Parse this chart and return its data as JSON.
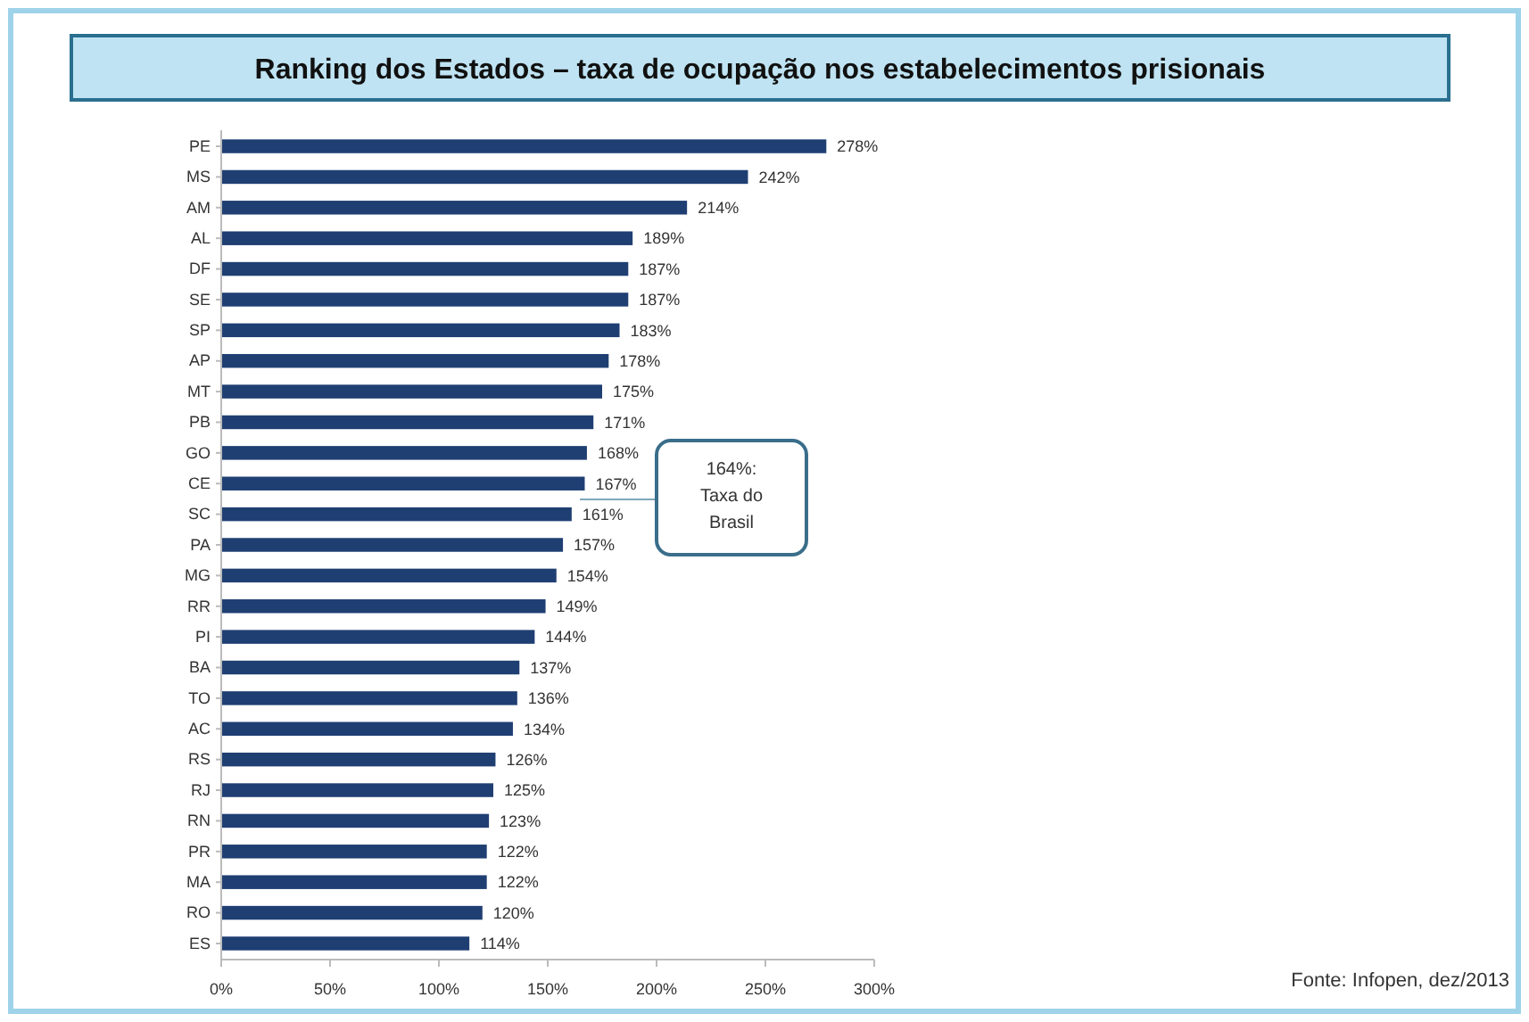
{
  "chart_data": {
    "type": "bar",
    "orientation": "horizontal",
    "title": "Ranking dos Estados – taxa de ocupação nos estabelecimentos prisionais",
    "categories": [
      "PE",
      "MS",
      "AM",
      "AL",
      "DF",
      "SE",
      "SP",
      "AP",
      "MT",
      "PB",
      "GO",
      "CE",
      "SC",
      "PA",
      "MG",
      "RR",
      "PI",
      "BA",
      "TO",
      "AC",
      "RS",
      "RJ",
      "RN",
      "PR",
      "MA",
      "RO",
      "ES"
    ],
    "values": [
      278,
      242,
      214,
      189,
      187,
      187,
      183,
      178,
      175,
      171,
      168,
      167,
      161,
      157,
      154,
      149,
      144,
      137,
      136,
      134,
      126,
      125,
      123,
      122,
      122,
      120,
      114
    ],
    "value_labels": [
      "278%",
      "242%",
      "214%",
      "189%",
      "187%",
      "187%",
      "183%",
      "178%",
      "175%",
      "171%",
      "168%",
      "167%",
      "161%",
      "157%",
      "154%",
      "149%",
      "144%",
      "137%",
      "136%",
      "134%",
      "126%",
      "125%",
      "123%",
      "122%",
      "122%",
      "120%",
      "114%"
    ],
    "color": "#1f3f73",
    "xlim": [
      0,
      300
    ],
    "xticks": [
      {
        "value": 0,
        "label": "0%"
      },
      {
        "value": 50,
        "label": "50%"
      },
      {
        "value": 100,
        "label": "100%"
      },
      {
        "value": 150,
        "label": "150%"
      },
      {
        "value": 200,
        "label": "200%"
      },
      {
        "value": 250,
        "label": "250%"
      },
      {
        "value": 300,
        "label": "300%"
      }
    ],
    "grid": false,
    "annotations": [
      "164%:\nTaxa do\nBrasil",
      "Fonte: Infopen, dez/2013"
    ]
  }
}
